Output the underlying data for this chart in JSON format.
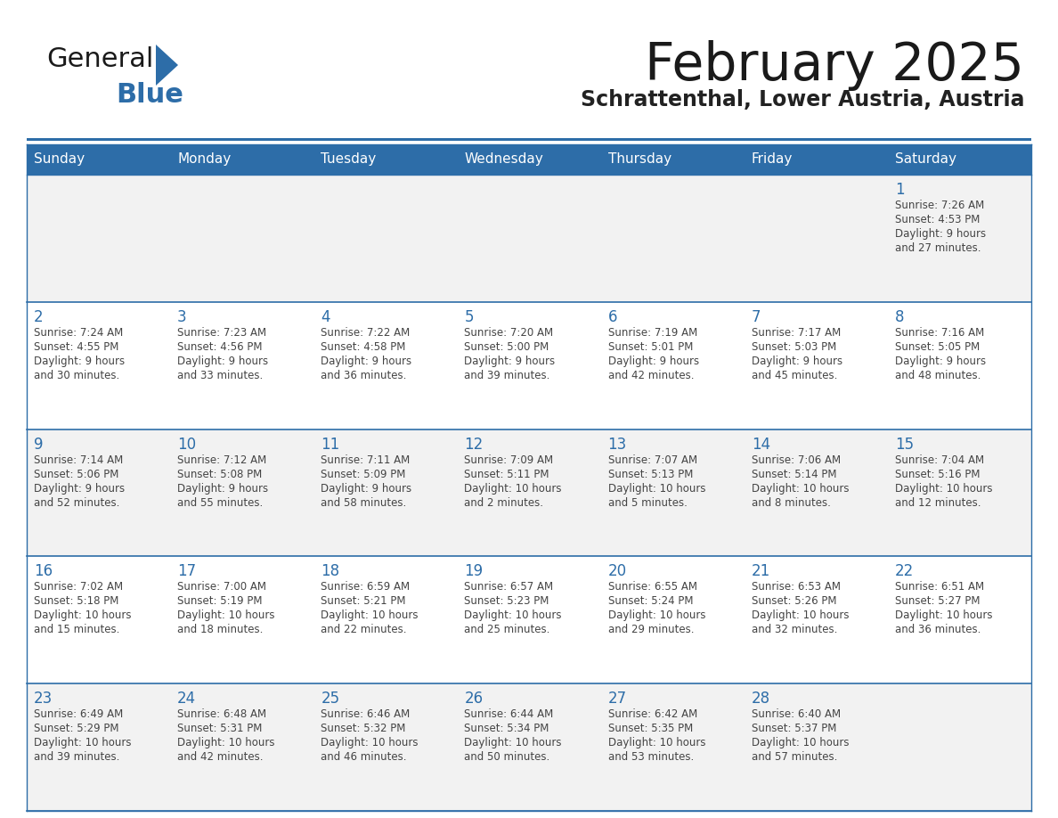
{
  "title": "February 2025",
  "subtitle": "Schrattenthal, Lower Austria, Austria",
  "days_of_week": [
    "Sunday",
    "Monday",
    "Tuesday",
    "Wednesday",
    "Thursday",
    "Friday",
    "Saturday"
  ],
  "header_bg": "#2D6DA8",
  "header_text": "#FFFFFF",
  "cell_bg_light": "#F2F2F2",
  "cell_bg_white": "#FFFFFF",
  "cell_border_color": "#2D6DA8",
  "day_num_color": "#2D6DA8",
  "text_color": "#444444",
  "title_color": "#1a1a1a",
  "subtitle_color": "#222222",
  "logo_general_color": "#1a1a1a",
  "logo_blue_color": "#2D6DA8",
  "calendar_data": [
    [
      {
        "day": null,
        "info": ""
      },
      {
        "day": null,
        "info": ""
      },
      {
        "day": null,
        "info": ""
      },
      {
        "day": null,
        "info": ""
      },
      {
        "day": null,
        "info": ""
      },
      {
        "day": null,
        "info": ""
      },
      {
        "day": 1,
        "info": "Sunrise: 7:26 AM\nSunset: 4:53 PM\nDaylight: 9 hours\nand 27 minutes."
      }
    ],
    [
      {
        "day": 2,
        "info": "Sunrise: 7:24 AM\nSunset: 4:55 PM\nDaylight: 9 hours\nand 30 minutes."
      },
      {
        "day": 3,
        "info": "Sunrise: 7:23 AM\nSunset: 4:56 PM\nDaylight: 9 hours\nand 33 minutes."
      },
      {
        "day": 4,
        "info": "Sunrise: 7:22 AM\nSunset: 4:58 PM\nDaylight: 9 hours\nand 36 minutes."
      },
      {
        "day": 5,
        "info": "Sunrise: 7:20 AM\nSunset: 5:00 PM\nDaylight: 9 hours\nand 39 minutes."
      },
      {
        "day": 6,
        "info": "Sunrise: 7:19 AM\nSunset: 5:01 PM\nDaylight: 9 hours\nand 42 minutes."
      },
      {
        "day": 7,
        "info": "Sunrise: 7:17 AM\nSunset: 5:03 PM\nDaylight: 9 hours\nand 45 minutes."
      },
      {
        "day": 8,
        "info": "Sunrise: 7:16 AM\nSunset: 5:05 PM\nDaylight: 9 hours\nand 48 minutes."
      }
    ],
    [
      {
        "day": 9,
        "info": "Sunrise: 7:14 AM\nSunset: 5:06 PM\nDaylight: 9 hours\nand 52 minutes."
      },
      {
        "day": 10,
        "info": "Sunrise: 7:12 AM\nSunset: 5:08 PM\nDaylight: 9 hours\nand 55 minutes."
      },
      {
        "day": 11,
        "info": "Sunrise: 7:11 AM\nSunset: 5:09 PM\nDaylight: 9 hours\nand 58 minutes."
      },
      {
        "day": 12,
        "info": "Sunrise: 7:09 AM\nSunset: 5:11 PM\nDaylight: 10 hours\nand 2 minutes."
      },
      {
        "day": 13,
        "info": "Sunrise: 7:07 AM\nSunset: 5:13 PM\nDaylight: 10 hours\nand 5 minutes."
      },
      {
        "day": 14,
        "info": "Sunrise: 7:06 AM\nSunset: 5:14 PM\nDaylight: 10 hours\nand 8 minutes."
      },
      {
        "day": 15,
        "info": "Sunrise: 7:04 AM\nSunset: 5:16 PM\nDaylight: 10 hours\nand 12 minutes."
      }
    ],
    [
      {
        "day": 16,
        "info": "Sunrise: 7:02 AM\nSunset: 5:18 PM\nDaylight: 10 hours\nand 15 minutes."
      },
      {
        "day": 17,
        "info": "Sunrise: 7:00 AM\nSunset: 5:19 PM\nDaylight: 10 hours\nand 18 minutes."
      },
      {
        "day": 18,
        "info": "Sunrise: 6:59 AM\nSunset: 5:21 PM\nDaylight: 10 hours\nand 22 minutes."
      },
      {
        "day": 19,
        "info": "Sunrise: 6:57 AM\nSunset: 5:23 PM\nDaylight: 10 hours\nand 25 minutes."
      },
      {
        "day": 20,
        "info": "Sunrise: 6:55 AM\nSunset: 5:24 PM\nDaylight: 10 hours\nand 29 minutes."
      },
      {
        "day": 21,
        "info": "Sunrise: 6:53 AM\nSunset: 5:26 PM\nDaylight: 10 hours\nand 32 minutes."
      },
      {
        "day": 22,
        "info": "Sunrise: 6:51 AM\nSunset: 5:27 PM\nDaylight: 10 hours\nand 36 minutes."
      }
    ],
    [
      {
        "day": 23,
        "info": "Sunrise: 6:49 AM\nSunset: 5:29 PM\nDaylight: 10 hours\nand 39 minutes."
      },
      {
        "day": 24,
        "info": "Sunrise: 6:48 AM\nSunset: 5:31 PM\nDaylight: 10 hours\nand 42 minutes."
      },
      {
        "day": 25,
        "info": "Sunrise: 6:46 AM\nSunset: 5:32 PM\nDaylight: 10 hours\nand 46 minutes."
      },
      {
        "day": 26,
        "info": "Sunrise: 6:44 AM\nSunset: 5:34 PM\nDaylight: 10 hours\nand 50 minutes."
      },
      {
        "day": 27,
        "info": "Sunrise: 6:42 AM\nSunset: 5:35 PM\nDaylight: 10 hours\nand 53 minutes."
      },
      {
        "day": 28,
        "info": "Sunrise: 6:40 AM\nSunset: 5:37 PM\nDaylight: 10 hours\nand 57 minutes."
      },
      {
        "day": null,
        "info": ""
      }
    ]
  ]
}
